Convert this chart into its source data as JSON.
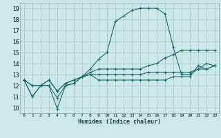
{
  "xlabel": "Humidex (Indice chaleur)",
  "xlim": [
    -0.5,
    23.5
  ],
  "ylim": [
    9.5,
    19.5
  ],
  "xticks": [
    0,
    1,
    2,
    3,
    4,
    5,
    6,
    7,
    8,
    9,
    10,
    11,
    12,
    13,
    14,
    15,
    16,
    17,
    18,
    19,
    20,
    21,
    22,
    23
  ],
  "yticks": [
    10,
    11,
    12,
    13,
    14,
    15,
    16,
    17,
    18,
    19
  ],
  "bg_color": "#cce8e8",
  "grid_color": "#aacccc",
  "line_color": "#1a6b6b",
  "series": [
    [
      12.5,
      11.0,
      12.0,
      12.0,
      9.9,
      12.0,
      12.2,
      12.8,
      13.0,
      12.5,
      12.5,
      12.5,
      12.5,
      12.5,
      12.5,
      12.5,
      12.5,
      12.5,
      12.8,
      12.8,
      12.8,
      13.8,
      13.5,
      13.8
    ],
    [
      12.5,
      11.0,
      12.0,
      12.0,
      10.9,
      12.0,
      12.2,
      12.8,
      13.5,
      14.4,
      15.0,
      17.8,
      18.3,
      18.8,
      19.0,
      19.0,
      19.0,
      18.5,
      15.5,
      13.0,
      13.0,
      13.5,
      14.0,
      13.8
    ],
    [
      12.5,
      12.0,
      12.0,
      12.5,
      11.5,
      12.2,
      12.5,
      12.8,
      13.2,
      13.5,
      13.5,
      13.5,
      13.5,
      13.5,
      13.5,
      13.8,
      14.0,
      14.5,
      14.8,
      15.2,
      15.2,
      15.2,
      15.2,
      15.2
    ],
    [
      12.5,
      12.0,
      12.0,
      12.5,
      11.5,
      12.2,
      12.5,
      12.8,
      13.0,
      13.0,
      13.0,
      13.0,
      13.0,
      13.0,
      13.0,
      13.2,
      13.2,
      13.2,
      13.2,
      13.2,
      13.2,
      13.5,
      13.5,
      13.8
    ]
  ]
}
